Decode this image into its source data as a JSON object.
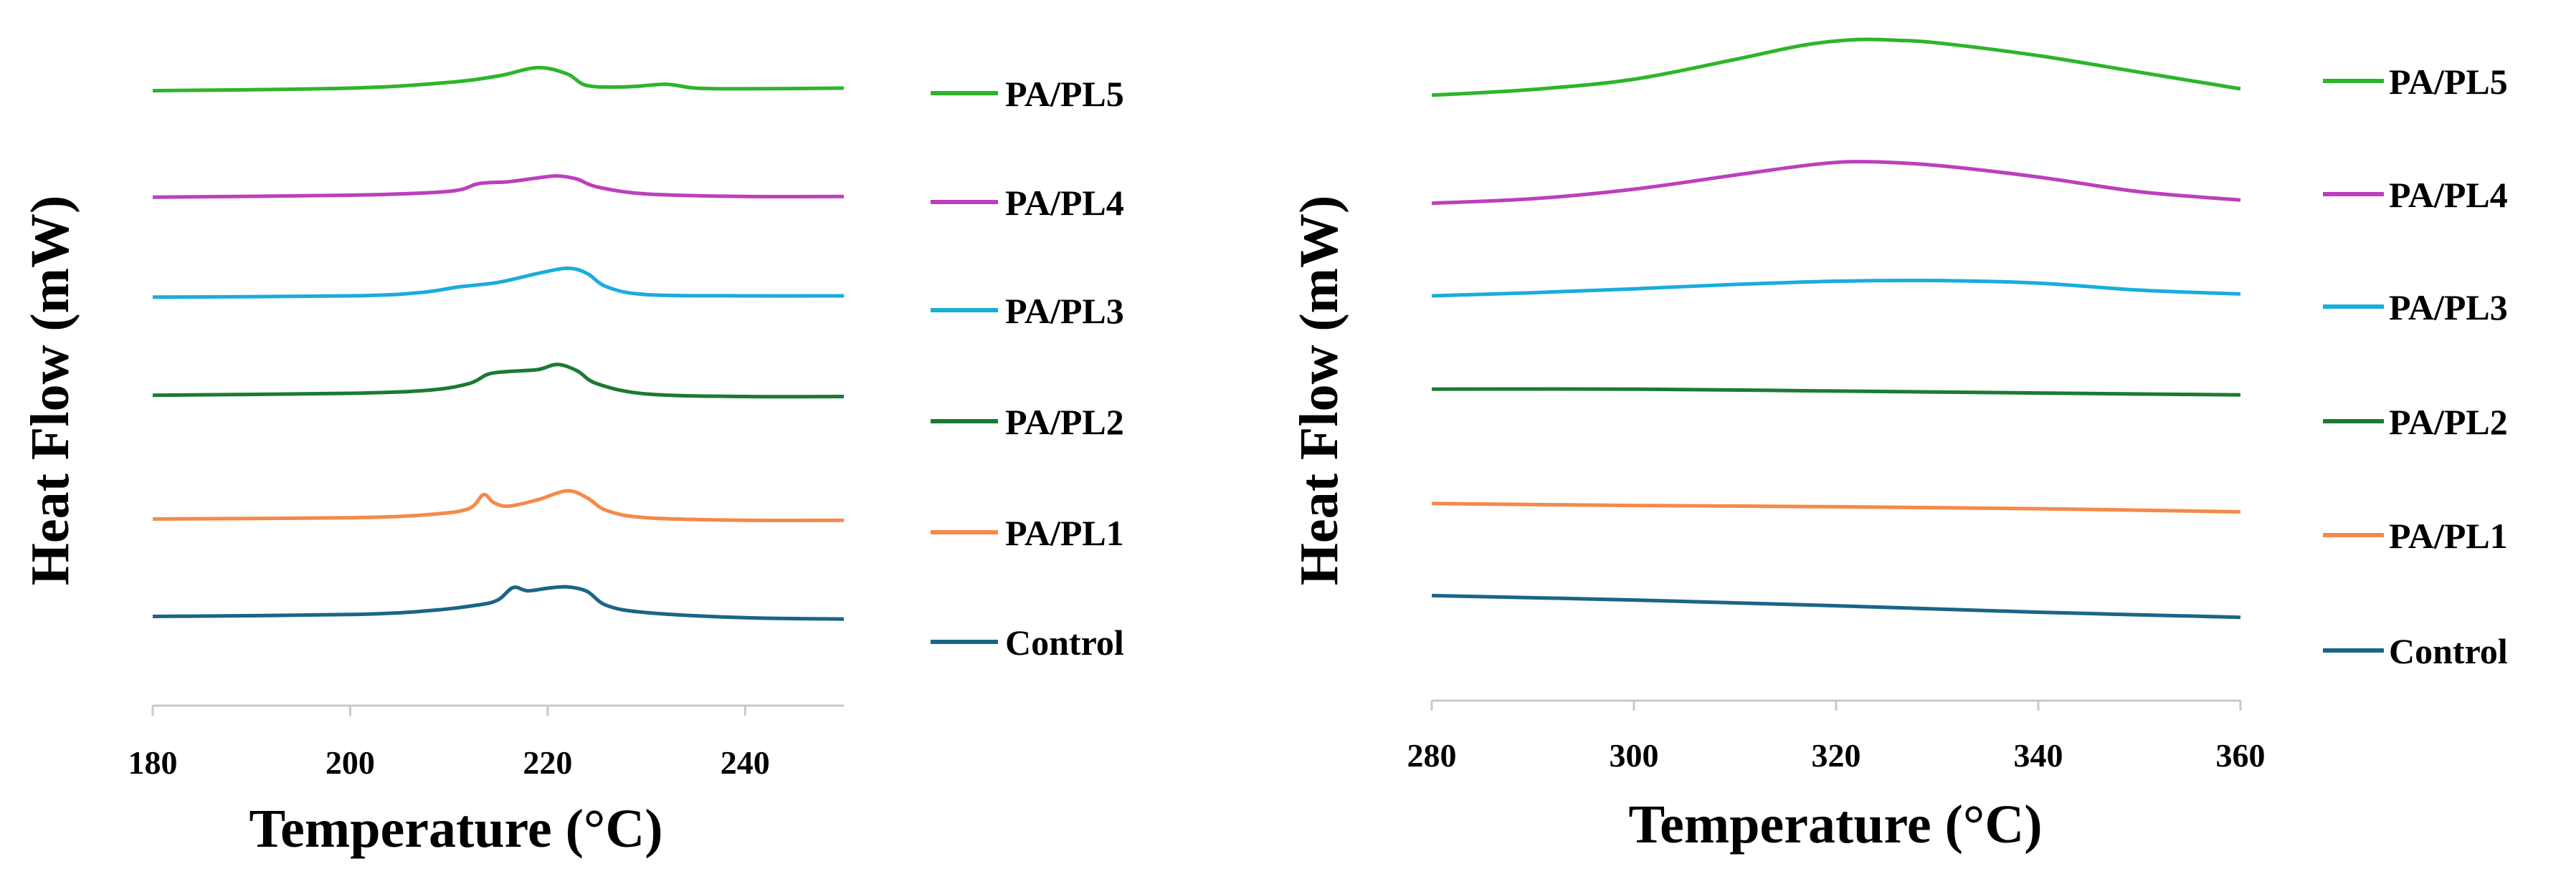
{
  "chart_data": [
    {
      "type": "line",
      "ylabel": "Heat Flow (mW)",
      "xlabel": "Temperature (°C)",
      "xlim": [
        180,
        250
      ],
      "ylim": [
        0,
        100
      ],
      "xticks": [
        180,
        200,
        220,
        240
      ],
      "xtick_labels": [
        "180",
        "200",
        "220",
        "240"
      ],
      "series": [
        {
          "name": "PA/PL5",
          "color": "#2db52a",
          "points": [
            [
              180,
              92
            ],
            [
              200,
              92.4
            ],
            [
              210,
              93.3
            ],
            [
              215,
              94.3
            ],
            [
              219,
              95.6
            ],
            [
              222,
              94.6
            ],
            [
              224,
              92.8
            ],
            [
              228,
              92.6
            ],
            [
              232,
              93.0
            ],
            [
              235,
              92.4
            ],
            [
              240,
              92.3
            ],
            [
              250,
              92.4
            ]
          ]
        },
        {
          "name": "PA/PL4",
          "color": "#bd3fbd",
          "points": [
            [
              180,
              75.4
            ],
            [
              200,
              75.7
            ],
            [
              210,
              76.3
            ],
            [
              213,
              77.5
            ],
            [
              216,
              77.8
            ],
            [
              219,
              78.4
            ],
            [
              221,
              78.7
            ],
            [
              223,
              78.2
            ],
            [
              225,
              77.0
            ],
            [
              230,
              75.9
            ],
            [
              240,
              75.5
            ],
            [
              250,
              75.5
            ]
          ]
        },
        {
          "name": "PA/PL3",
          "color": "#1aacdc",
          "points": [
            [
              180,
              59.8
            ],
            [
              200,
              60.0
            ],
            [
              207,
              60.5
            ],
            [
              211,
              61.4
            ],
            [
              215,
              62.1
            ],
            [
              219,
              63.5
            ],
            [
              222,
              64.3
            ],
            [
              224,
              63.5
            ],
            [
              226,
              61.4
            ],
            [
              230,
              60.2
            ],
            [
              240,
              60.0
            ],
            [
              250,
              60.0
            ]
          ]
        },
        {
          "name": "PA/PL2",
          "color": "#1b7a34",
          "points": [
            [
              180,
              44.5
            ],
            [
              200,
              44.8
            ],
            [
              208,
              45.3
            ],
            [
              212,
              46.3
            ],
            [
              214,
              47.8
            ],
            [
              216,
              48.2
            ],
            [
              219,
              48.5
            ],
            [
              221,
              49.3
            ],
            [
              223,
              48.3
            ],
            [
              225,
              46.3
            ],
            [
              230,
              44.7
            ],
            [
              240,
              44.3
            ],
            [
              250,
              44.3
            ]
          ]
        },
        {
          "name": "PA/PL1",
          "color": "#f5894a",
          "points": [
            [
              180,
              25.2
            ],
            [
              200,
              25.4
            ],
            [
              208,
              25.9
            ],
            [
              212,
              26.8
            ],
            [
              213.5,
              29.0
            ],
            [
              214.5,
              27.8
            ],
            [
              216,
              27.2
            ],
            [
              219,
              28.2
            ],
            [
              222,
              29.6
            ],
            [
              224,
              28.5
            ],
            [
              226,
              26.5
            ],
            [
              230,
              25.4
            ],
            [
              240,
              25.0
            ],
            [
              250,
              25.0
            ]
          ]
        },
        {
          "name": "Control",
          "color": "#1a6585",
          "points": [
            [
              180,
              10.0
            ],
            [
              200,
              10.3
            ],
            [
              208,
              10.9
            ],
            [
              213,
              11.8
            ],
            [
              215,
              12.6
            ],
            [
              216.5,
              14.5
            ],
            [
              218,
              14.0
            ],
            [
              220,
              14.4
            ],
            [
              222,
              14.6
            ],
            [
              224,
              13.9
            ],
            [
              226,
              11.7
            ],
            [
              230,
              10.6
            ],
            [
              240,
              9.8
            ],
            [
              250,
              9.6
            ]
          ]
        }
      ]
    },
    {
      "type": "line",
      "ylabel": "Heat Flow (mW)",
      "xlabel": "Temperature (°C)",
      "xlim": [
        280,
        360
      ],
      "ylim": [
        0,
        100
      ],
      "xticks": [
        280,
        300,
        320,
        340,
        360
      ],
      "xtick_labels": [
        "280",
        "300",
        "320",
        "340",
        "360"
      ],
      "series": [
        {
          "name": "PA/PL5",
          "color": "#2db52a",
          "points": [
            [
              280,
              91.6
            ],
            [
              290,
              92.5
            ],
            [
              300,
              94.1
            ],
            [
              310,
              97.2
            ],
            [
              317,
              99.5
            ],
            [
              322,
              100.3
            ],
            [
              326,
              100.2
            ],
            [
              330,
              99.8
            ],
            [
              340,
              97.8
            ],
            [
              350,
              95.2
            ],
            [
              360,
              92.6
            ]
          ]
        },
        {
          "name": "PA/PL4",
          "color": "#bd3fbd",
          "points": [
            [
              280,
              74.7
            ],
            [
              290,
              75.4
            ],
            [
              300,
              76.9
            ],
            [
              310,
              79.1
            ],
            [
              318,
              80.8
            ],
            [
              323,
              81.2
            ],
            [
              330,
              80.6
            ],
            [
              340,
              78.8
            ],
            [
              350,
              76.5
            ],
            [
              360,
              75.2
            ]
          ]
        },
        {
          "name": "PA/PL3",
          "color": "#1aacdc",
          "points": [
            [
              280,
              60.2
            ],
            [
              290,
              60.7
            ],
            [
              300,
              61.3
            ],
            [
              310,
              62.0
            ],
            [
              320,
              62.5
            ],
            [
              330,
              62.6
            ],
            [
              340,
              62.2
            ],
            [
              350,
              61.1
            ],
            [
              360,
              60.5
            ]
          ]
        },
        {
          "name": "PA/PL2",
          "color": "#1b7a34",
          "points": [
            [
              280,
              45.6
            ],
            [
              300,
              45.6
            ],
            [
              320,
              45.3
            ],
            [
              340,
              45.0
            ],
            [
              360,
              44.7
            ]
          ]
        },
        {
          "name": "PA/PL1",
          "color": "#f5894a",
          "points": [
            [
              280,
              27.7
            ],
            [
              300,
              27.4
            ],
            [
              320,
              27.2
            ],
            [
              340,
              26.9
            ],
            [
              360,
              26.4
            ]
          ]
        },
        {
          "name": "Control",
          "color": "#1a6585",
          "points": [
            [
              280,
              13.3
            ],
            [
              300,
              12.6
            ],
            [
              320,
              11.7
            ],
            [
              340,
              10.7
            ],
            [
              360,
              9.9
            ]
          ]
        }
      ]
    }
  ]
}
